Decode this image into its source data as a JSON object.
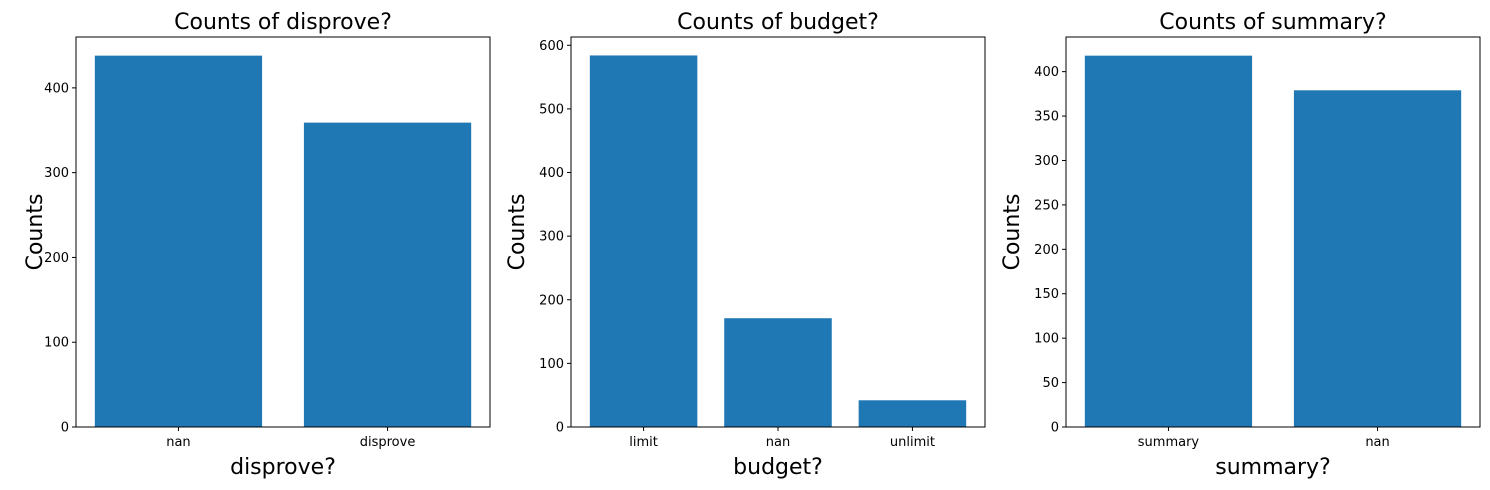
{
  "chart_data": [
    {
      "type": "bar",
      "title": "Counts of disprove?",
      "xlabel": "disprove?",
      "ylabel": "Counts",
      "categories": [
        "nan",
        "disprove"
      ],
      "values": [
        438,
        359
      ],
      "ylim": [
        0,
        460
      ],
      "yticks": [
        0,
        100,
        200,
        300,
        400
      ],
      "color": "#1f77b4"
    },
    {
      "type": "bar",
      "title": "Counts of budget?",
      "xlabel": "budget?",
      "ylabel": "Counts",
      "categories": [
        "limit",
        "nan",
        "unlimit"
      ],
      "values": [
        584,
        171,
        42
      ],
      "ylim": [
        0,
        613
      ],
      "yticks": [
        0,
        100,
        200,
        300,
        400,
        500,
        600
      ],
      "color": "#1f77b4"
    },
    {
      "type": "bar",
      "title": "Counts of summary?",
      "xlabel": "summary?",
      "ylabel": "Counts",
      "categories": [
        "summary",
        "nan"
      ],
      "values": [
        418,
        379
      ],
      "ylim": [
        0,
        439
      ],
      "yticks": [
        0,
        50,
        100,
        150,
        200,
        250,
        300,
        350,
        400
      ],
      "color": "#1f77b4"
    }
  ]
}
